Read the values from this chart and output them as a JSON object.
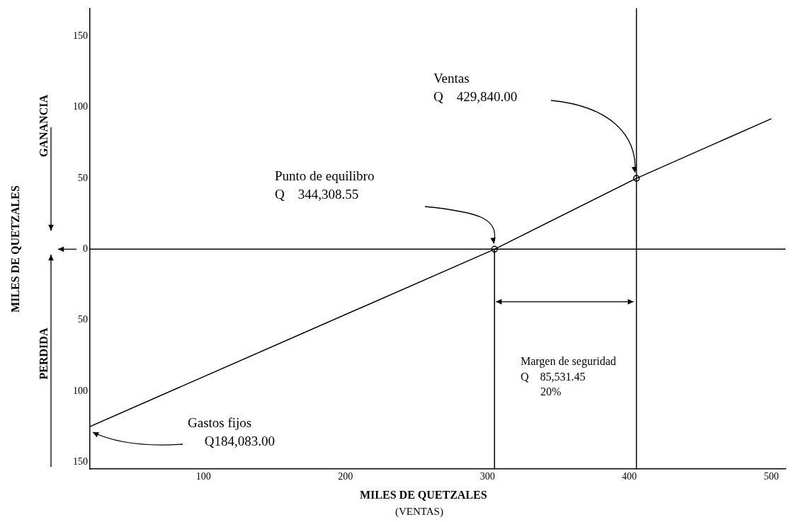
{
  "chart_data": {
    "type": "line",
    "xlabel": "MILES DE QUETZALES\n(VENTAS)",
    "ylabel": "MILES DE QUETZALES",
    "xlim": [
      20,
      510
    ],
    "xticks": [
      100,
      200,
      300,
      400,
      500
    ],
    "ylim": [
      -155,
      170
    ],
    "yticks": [
      {
        "value": -150,
        "label": "150"
      },
      {
        "value": -100,
        "label": "100"
      },
      {
        "value": -50,
        "label": "50"
      },
      0,
      50,
      100,
      150
    ],
    "series": [
      {
        "color": "#000000",
        "x": [
          20,
          305,
          405,
          500
        ],
        "values": [
          -125,
          0,
          50,
          92
        ]
      },
      {
        "color": "#000000",
        "x": [
          305,
          305
        ],
        "values": [
          0,
          -155
        ]
      },
      {
        "type": "scatter",
        "marker": "circle",
        "color": "#000000",
        "x": [
          305,
          405
        ],
        "values": [
          0,
          50
        ]
      }
    ],
    "grid": false,
    "legend": false,
    "ref_lines": [
      {
        "axis": "y",
        "value": 0,
        "color": "#000000"
      },
      {
        "axis": "x",
        "value": 405,
        "color": "#000000"
      }
    ],
    "annotations": [
      "Ventas\nQ    429,840.00",
      "Punto de equilibro\nQ    344,308.55",
      "Margen de seguridad\nQ    85,531.45\n       20%",
      "Gastos fijos\n     Q184,083.00",
      "GANANCIA",
      "PERDIDA"
    ]
  }
}
